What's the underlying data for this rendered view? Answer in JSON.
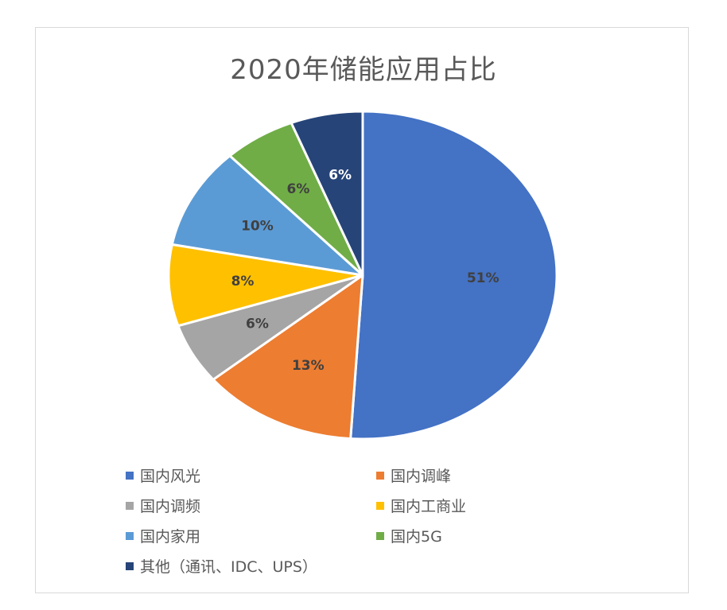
{
  "chart_data": {
    "type": "pie",
    "title": "2020年储能应用占比",
    "start_angle_deg": 0,
    "direction": "clockwise",
    "legend_position": "bottom",
    "slices": [
      {
        "label": "国内风光",
        "value": 51,
        "value_label": "51%",
        "color": "#4472C4",
        "label_color": "#404040"
      },
      {
        "label": "国内调峰",
        "value": 13,
        "value_label": "13%",
        "color": "#ED7D31",
        "label_color": "#404040"
      },
      {
        "label": "国内调频",
        "value": 6,
        "value_label": "6%",
        "color": "#A5A5A5",
        "label_color": "#404040"
      },
      {
        "label": "国内工商业",
        "value": 8,
        "value_label": "8%",
        "color": "#FFC000",
        "label_color": "#404040"
      },
      {
        "label": "国内家用",
        "value": 10,
        "value_label": "10%",
        "color": "#5B9BD5",
        "label_color": "#404040"
      },
      {
        "label": "国内5G",
        "value": 6,
        "value_label": "6%",
        "color": "#70AD47",
        "label_color": "#404040"
      },
      {
        "label": "其他（通讯、IDC、UPS）",
        "value": 6,
        "value_label": "6%",
        "color": "#264478",
        "label_color": "#ffffff"
      }
    ]
  }
}
